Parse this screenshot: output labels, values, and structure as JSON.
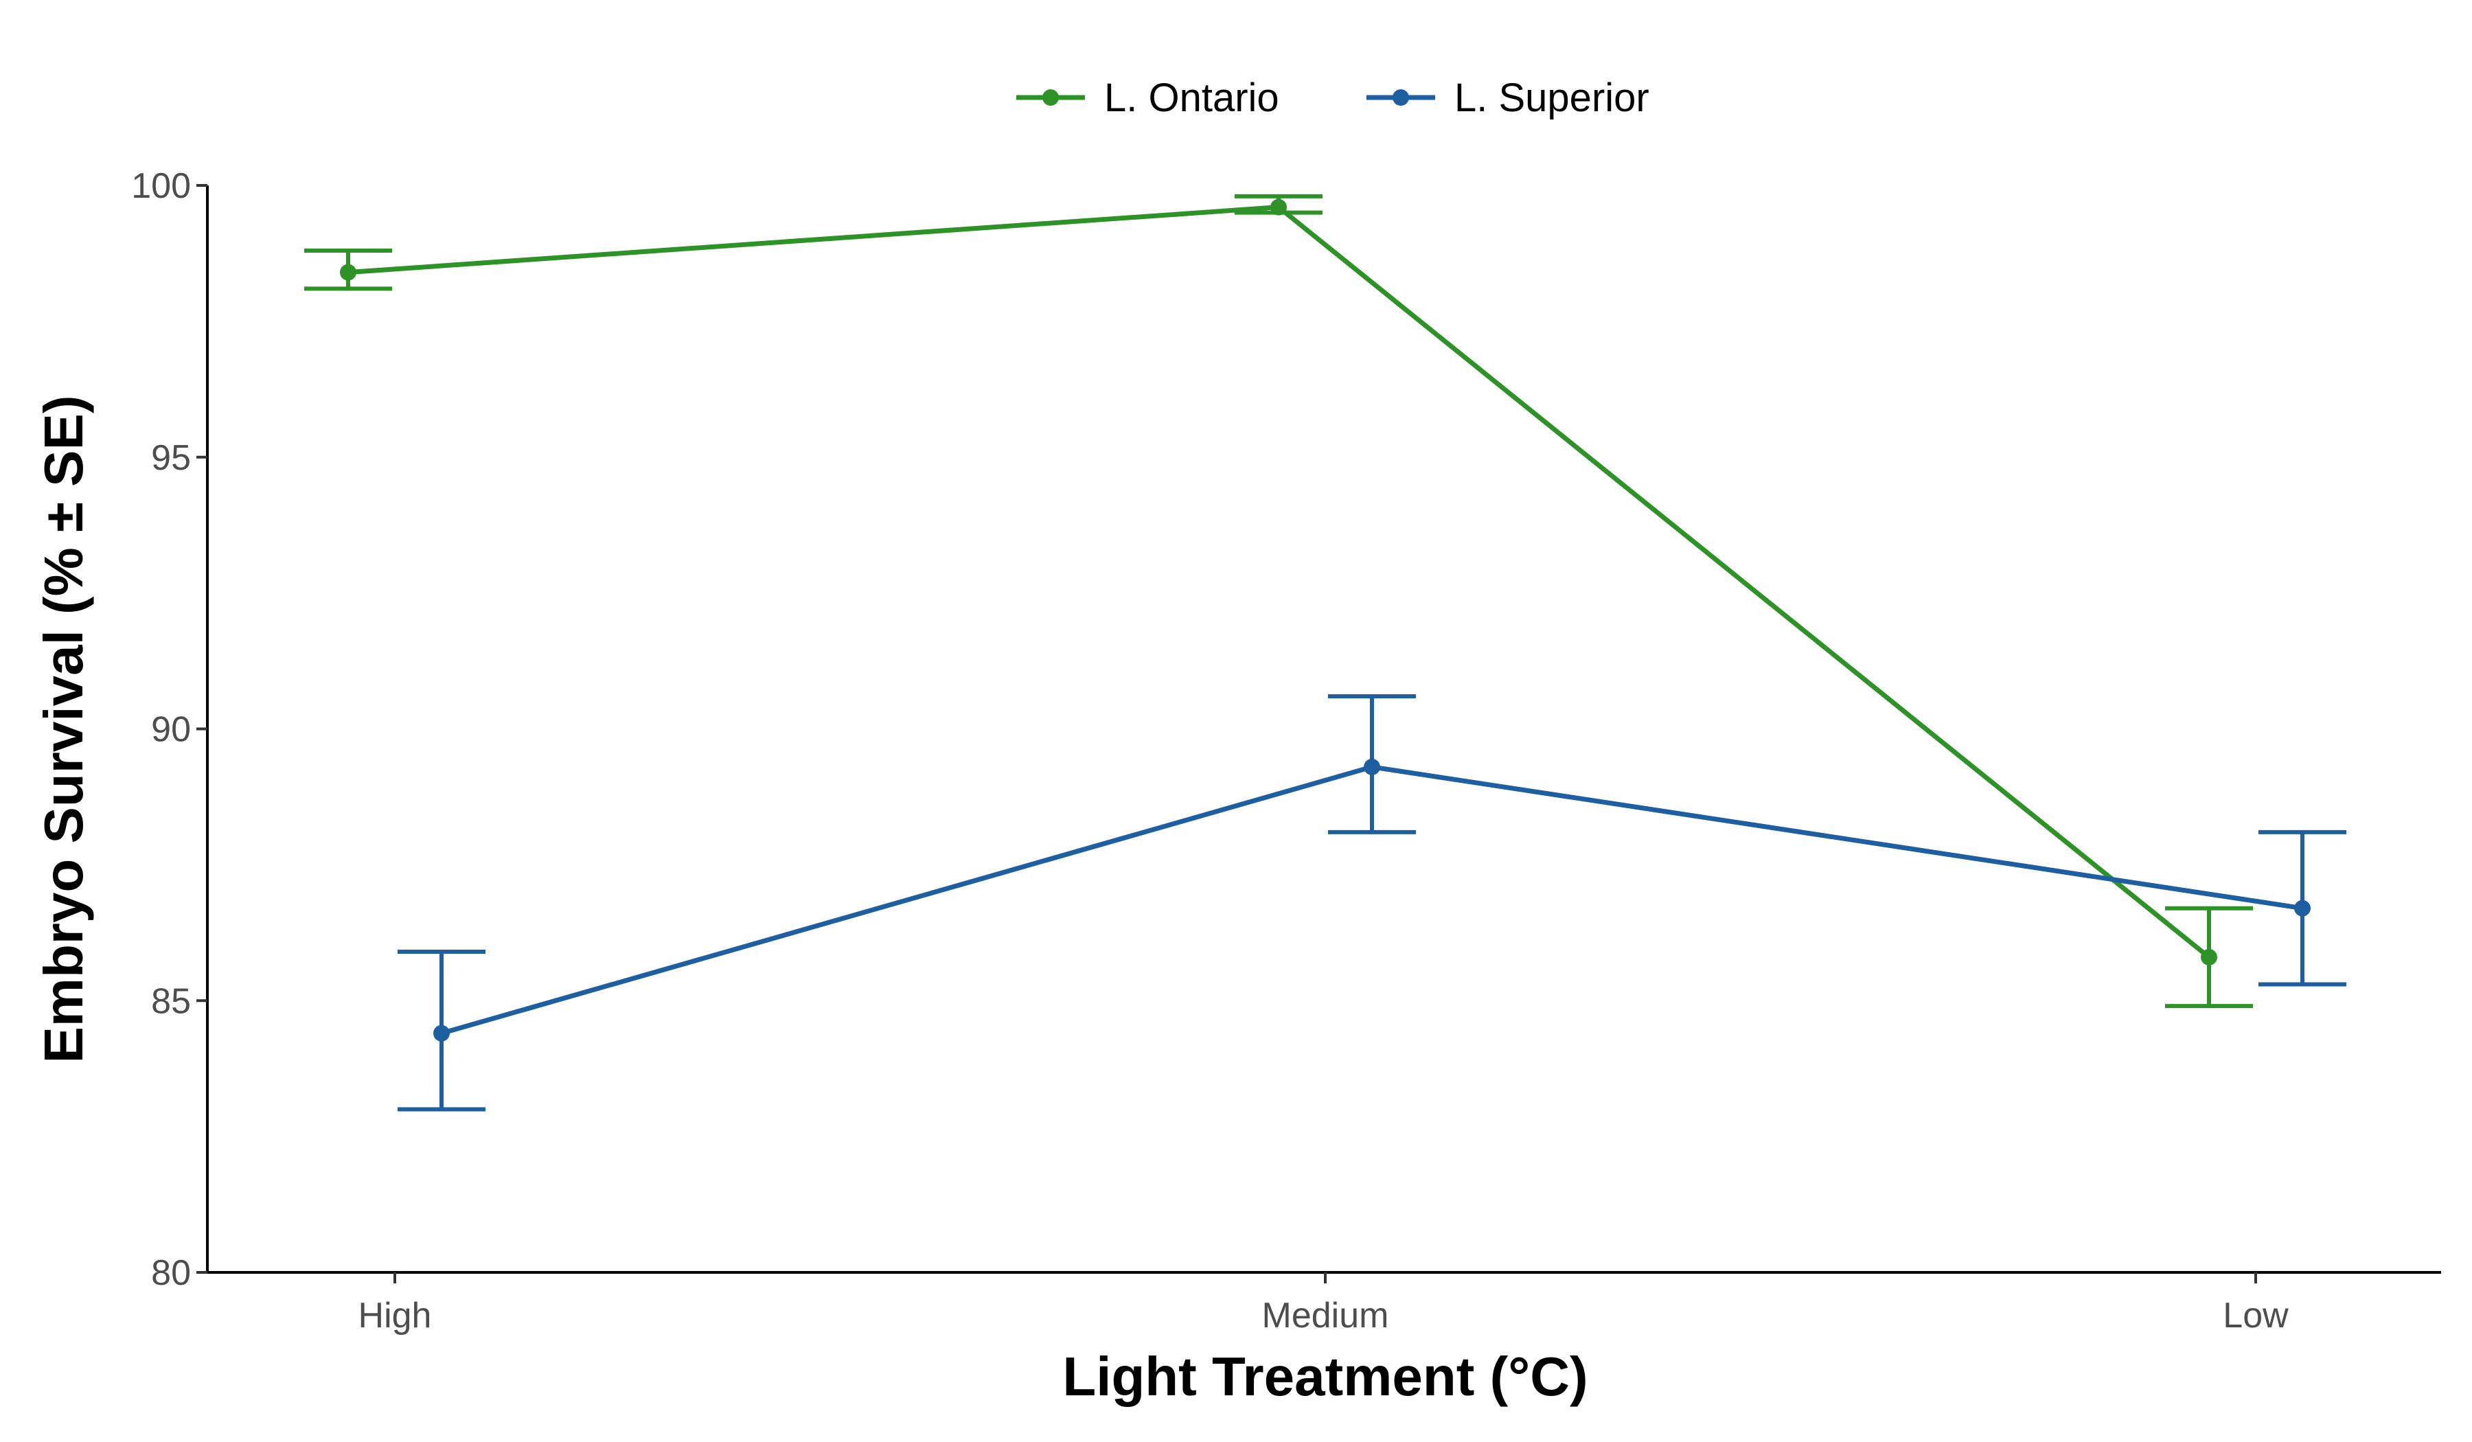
{
  "chart_data": {
    "type": "line",
    "xlabel": "Light Treatment (°C)",
    "ylabel": "Embryo Survival (% ± SE)",
    "categories": [
      "High",
      "Medium",
      "Low"
    ],
    "ylim": [
      80,
      100
    ],
    "yticks": [
      80,
      85,
      90,
      95,
      100
    ],
    "grid": false,
    "legend_position": "top",
    "error_bars": "SE",
    "series": [
      {
        "name": "L. Ontario",
        "color": "#2e9327",
        "values": [
          98.4,
          99.6,
          85.8
        ],
        "error_low": [
          98.1,
          99.5,
          84.9
        ],
        "error_high": [
          98.8,
          99.8,
          86.7
        ]
      },
      {
        "name": "L. Superior",
        "color": "#1d5fa0",
        "values": [
          84.4,
          89.3,
          86.7
        ],
        "error_low": [
          83.0,
          88.1,
          85.3
        ],
        "error_high": [
          85.9,
          90.6,
          88.1
        ]
      }
    ]
  }
}
